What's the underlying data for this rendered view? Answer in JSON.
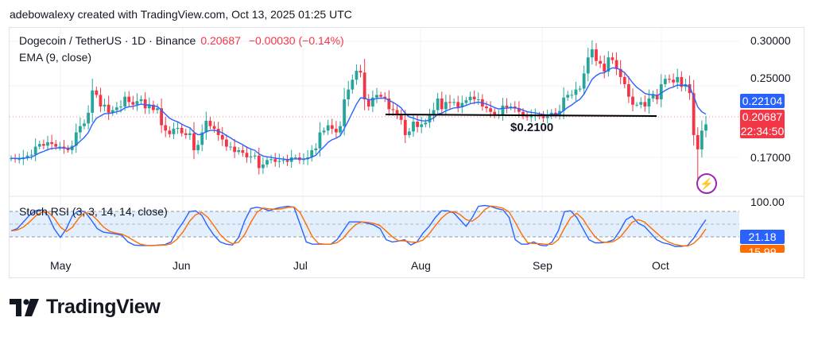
{
  "header": {
    "text": "adebowalexy created with TradingView.com, Oct 13, 2025 01:25 UTC"
  },
  "legend": {
    "symbol": "Dogecoin / TetherUS · 1D · Binance",
    "price": "0.20687",
    "change": "−0.00030 (−0.14%)",
    "ema": "EMA (9, close)",
    "stoch": "Stoch RSI (3, 3, 14, 14, close)"
  },
  "axis": {
    "price_ticks": [
      "0.30000",
      "0.25000",
      "0.17000"
    ],
    "rsi_top": "100.00",
    "months": [
      "May",
      "Jun",
      "Jul",
      "Aug",
      "Sep",
      "Oct"
    ]
  },
  "tags": {
    "ema": "0.22104",
    "last": "0.20687",
    "countdown": "22:34:50",
    "stoch_k": "21.18",
    "stoch_d": "15.99"
  },
  "annotation": {
    "support_label": "$0.2100"
  },
  "colors": {
    "up": "#26a69a",
    "down": "#f23645",
    "ema": "#2962ff",
    "k": "#2962ff",
    "d": "#ff6d00",
    "band": "#e3effd",
    "tag_blue": "#2962ff",
    "tag_red": "#f23645"
  },
  "branding": {
    "name": "TradingView"
  },
  "chart_data": {
    "type": "candlestick",
    "title": "Dogecoin / TetherUS · 1D · Binance",
    "support_level": 0.21,
    "price_ylim": [
      0.135,
      0.31
    ],
    "close": [
      0.169,
      0.168,
      0.168,
      0.17,
      0.172,
      0.173,
      0.182,
      0.185,
      0.183,
      0.187,
      0.185,
      0.182,
      0.182,
      0.18,
      0.178,
      0.183,
      0.198,
      0.205,
      0.208,
      0.22,
      0.245,
      0.24,
      0.227,
      0.229,
      0.22,
      0.223,
      0.226,
      0.227,
      0.238,
      0.232,
      0.229,
      0.233,
      0.235,
      0.225,
      0.229,
      0.223,
      0.225,
      0.206,
      0.2,
      0.196,
      0.202,
      0.203,
      0.197,
      0.195,
      0.197,
      0.178,
      0.184,
      0.198,
      0.211,
      0.205,
      0.202,
      0.195,
      0.19,
      0.182,
      0.182,
      0.176,
      0.178,
      0.175,
      0.17,
      0.171,
      0.172,
      0.158,
      0.162,
      0.167,
      0.168,
      0.165,
      0.166,
      0.167,
      0.165,
      0.17,
      0.17,
      0.167,
      0.168,
      0.17,
      0.178,
      0.18,
      0.198,
      0.2,
      0.206,
      0.202,
      0.198,
      0.205,
      0.235,
      0.246,
      0.257,
      0.267,
      0.265,
      0.235,
      0.227,
      0.237,
      0.24,
      0.238,
      0.236,
      0.224,
      0.223,
      0.217,
      0.212,
      0.195,
      0.199,
      0.21,
      0.204,
      0.207,
      0.209,
      0.217,
      0.223,
      0.236,
      0.224,
      0.232,
      0.231,
      0.232,
      0.226,
      0.231,
      0.234,
      0.238,
      0.235,
      0.235,
      0.227,
      0.225,
      0.221,
      0.217,
      0.218,
      0.228,
      0.226,
      0.227,
      0.225,
      0.221,
      0.216,
      0.215,
      0.217,
      0.217,
      0.216,
      0.214,
      0.216,
      0.22,
      0.218,
      0.222,
      0.237,
      0.24,
      0.24,
      0.246,
      0.247,
      0.264,
      0.282,
      0.291,
      0.278,
      0.275,
      0.266,
      0.282,
      0.279,
      0.269,
      0.26,
      0.252,
      0.238,
      0.229,
      0.229,
      0.232,
      0.227,
      0.236,
      0.24,
      0.235,
      0.252,
      0.258,
      0.257,
      0.254,
      0.26,
      0.249,
      0.252,
      0.242,
      0.195,
      0.179,
      0.2,
      0.207
    ],
    "stoch_rsi_k_percent": [
      35,
      40,
      55,
      70,
      80,
      82,
      70,
      40,
      20,
      40,
      70,
      80,
      78,
      60,
      40,
      32,
      30,
      28,
      25,
      10,
      3,
      2,
      2,
      2,
      3,
      4,
      10,
      35,
      55,
      78,
      80,
      70,
      45,
      25,
      10,
      5,
      3,
      20,
      58,
      85,
      88,
      85,
      80,
      85,
      88,
      90,
      88,
      50,
      10,
      5,
      5,
      5,
      5,
      15,
      35,
      55,
      55,
      55,
      52,
      48,
      40,
      15,
      10,
      12,
      15,
      3,
      10,
      30,
      45,
      65,
      80,
      80,
      75,
      60,
      45,
      65,
      90,
      92,
      90,
      85,
      82,
      65,
      15,
      5,
      5,
      10,
      3,
      1,
      10,
      35,
      78,
      80,
      65,
      40,
      15,
      8,
      8,
      10,
      15,
      35,
      60,
      68,
      52,
      45,
      30,
      15,
      8,
      5,
      0,
      0,
      2,
      18,
      40,
      60
    ]
  }
}
